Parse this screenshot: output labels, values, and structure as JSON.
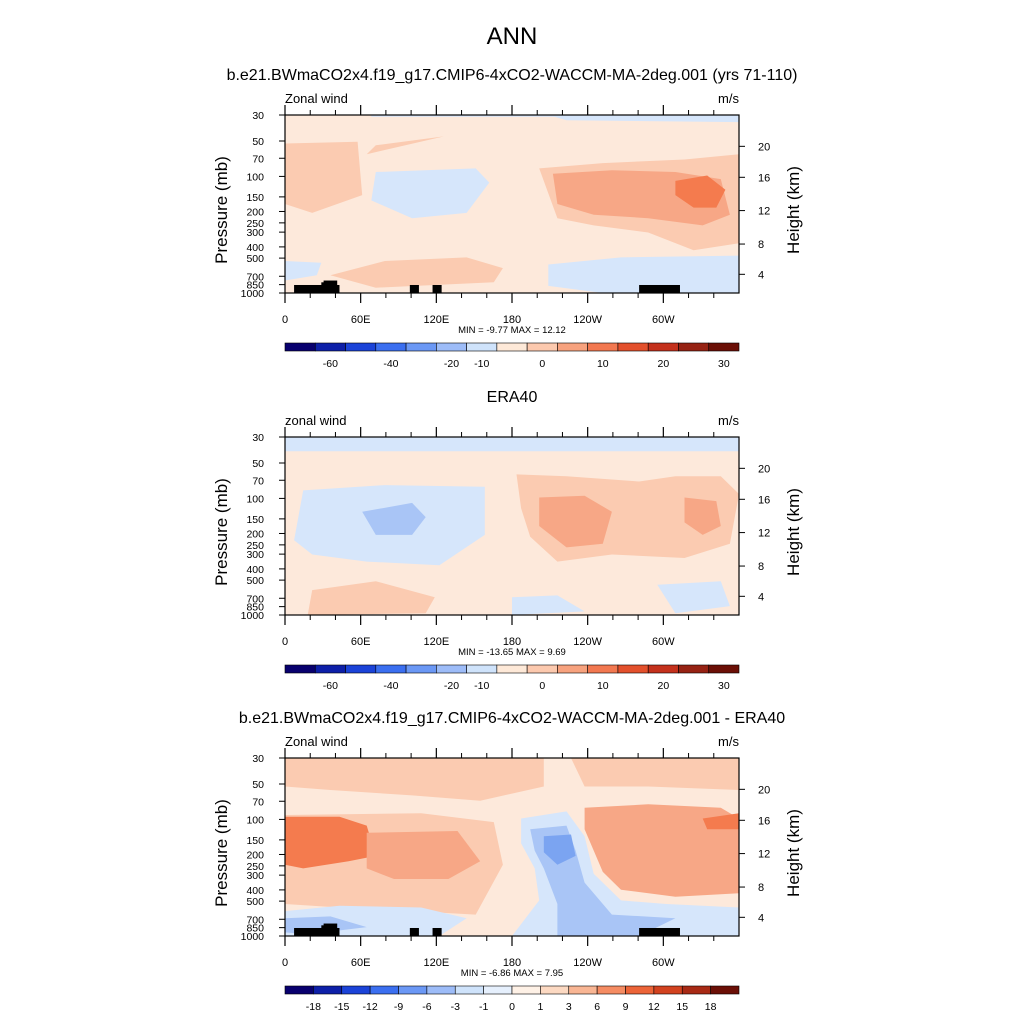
{
  "figure": {
    "title": "ANN"
  },
  "chart_data": [
    {
      "type": "heatmap",
      "title": "b.e21.BWmaCO2x4.f19_g17.CMIP6-4xCO2-WACCM-MA-2deg.001 (yrs 71-110)",
      "left_label": "Zonal wind",
      "right_label": "m/s",
      "ylabel": "Pressure (mb)",
      "ylabel_right": "Height (km)",
      "x_ticks": [
        "0",
        "60E",
        "120E",
        "180",
        "120W",
        "60W"
      ],
      "y_ticks": [
        "30",
        "50",
        "70",
        "100",
        "150",
        "200",
        "250",
        "300",
        "400",
        "500",
        "700",
        "850",
        "1000"
      ],
      "height_ticks": [
        "20",
        "16",
        "12",
        "8",
        "4"
      ],
      "stats": "MIN = -9.77  MAX =  12.12",
      "colorbar_labels": [
        "-60",
        "-40",
        "-20",
        "-10",
        "0",
        "10",
        "20",
        "30"
      ],
      "colorbar_colors": [
        "#08006e",
        "#0d1fa8",
        "#1b43d8",
        "#3b6ff0",
        "#6b98f5",
        "#9dbcf8",
        "#cfe3fb",
        "#fee9d8",
        "#fcc9ae",
        "#f7a27e",
        "#f27850",
        "#e3502c",
        "#c4311c",
        "#962213",
        "#6b0f06"
      ],
      "value_range": [
        -9.77,
        12.12
      ]
    },
    {
      "type": "heatmap",
      "title": "ERA40",
      "left_label": "zonal wind",
      "right_label": "m/s",
      "ylabel": "Pressure (mb)",
      "ylabel_right": "Height (km)",
      "x_ticks": [
        "0",
        "60E",
        "120E",
        "180",
        "120W",
        "60W"
      ],
      "y_ticks": [
        "30",
        "50",
        "70",
        "100",
        "150",
        "200",
        "250",
        "300",
        "400",
        "500",
        "700",
        "850",
        "1000"
      ],
      "height_ticks": [
        "20",
        "16",
        "12",
        "8",
        "4"
      ],
      "stats": "MIN = -13.65  MAX =  9.69",
      "colorbar_labels": [
        "-60",
        "-40",
        "-20",
        "-10",
        "0",
        "10",
        "20",
        "30"
      ],
      "colorbar_colors": [
        "#08006e",
        "#0d1fa8",
        "#1b43d8",
        "#3b6ff0",
        "#6b98f5",
        "#9dbcf8",
        "#cfe3fb",
        "#fee9d8",
        "#fcc9ae",
        "#f7a27e",
        "#f27850",
        "#e3502c",
        "#c4311c",
        "#962213",
        "#6b0f06"
      ],
      "value_range": [
        -13.65,
        9.69
      ]
    },
    {
      "type": "heatmap",
      "title": "b.e21.BWmaCO2x4.f19_g17.CMIP6-4xCO2-WACCM-MA-2deg.001 - ERA40",
      "left_label": "Zonal wind",
      "right_label": "m/s",
      "ylabel": "Pressure (mb)",
      "ylabel_right": "Height (km)",
      "x_ticks": [
        "0",
        "60E",
        "120E",
        "180",
        "120W",
        "60W"
      ],
      "y_ticks": [
        "30",
        "50",
        "70",
        "100",
        "150",
        "200",
        "250",
        "300",
        "400",
        "500",
        "700",
        "850",
        "1000"
      ],
      "height_ticks": [
        "20",
        "16",
        "12",
        "8",
        "4"
      ],
      "stats": "MIN = -6.86  MAX =  7.95",
      "colorbar_labels": [
        "-18",
        "-15",
        "-12",
        "-9",
        "-6",
        "-3",
        "-1",
        "0",
        "1",
        "3",
        "6",
        "9",
        "12",
        "15",
        "18"
      ],
      "colorbar_colors": [
        "#08006e",
        "#0d1fa8",
        "#1b43d8",
        "#3b6ff0",
        "#6b98f5",
        "#9dbcf8",
        "#cfe3fb",
        "#e6f0fd",
        "#fef1e6",
        "#fcd9c2",
        "#f9b694",
        "#f58c63",
        "#ec6438",
        "#d2421f",
        "#a82a15",
        "#6b0f06"
      ],
      "value_range": [
        -6.86,
        7.95
      ]
    }
  ]
}
